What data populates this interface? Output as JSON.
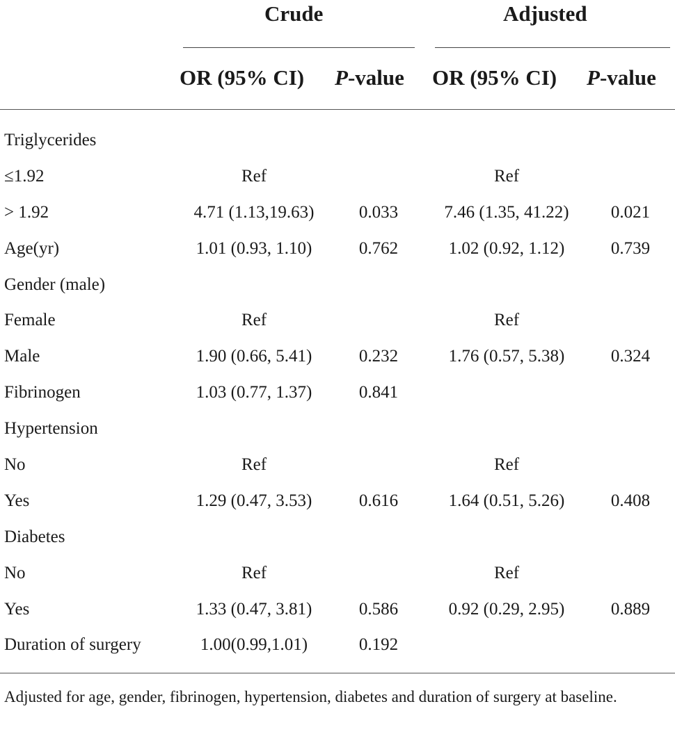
{
  "groups": {
    "crude": "Crude",
    "adjusted": "Adjusted"
  },
  "columns": {
    "or": "OR (95% CI)",
    "p_prefix": "P",
    "p_suffix": "-value"
  },
  "rows": [
    {
      "label": "Triglycerides",
      "crude_or": "",
      "crude_p": "",
      "adj_or": "",
      "adj_p": ""
    },
    {
      "label": "≤1.92",
      "crude_or": "Ref",
      "crude_p": "",
      "adj_or": "Ref",
      "adj_p": ""
    },
    {
      "label": "> 1.92",
      "crude_or": "4.71 (1.13,19.63)",
      "crude_p": "0.033",
      "adj_or": "7.46 (1.35, 41.22)",
      "adj_p": "0.021"
    },
    {
      "label": "Age(yr)",
      "crude_or": "1.01 (0.93, 1.10)",
      "crude_p": "0.762",
      "adj_or": "1.02 (0.92, 1.12)",
      "adj_p": "0.739"
    },
    {
      "label": "Gender (male)",
      "crude_or": "",
      "crude_p": "",
      "adj_or": "",
      "adj_p": ""
    },
    {
      "label": "Female",
      "crude_or": "Ref",
      "crude_p": "",
      "adj_or": "Ref",
      "adj_p": ""
    },
    {
      "label": "Male",
      "crude_or": "1.90 (0.66, 5.41)",
      "crude_p": "0.232",
      "adj_or": "1.76 (0.57, 5.38)",
      "adj_p": "0.324"
    },
    {
      "label": "Fibrinogen",
      "crude_or": "1.03 (0.77, 1.37)",
      "crude_p": "0.841",
      "adj_or": "",
      "adj_p": ""
    },
    {
      "label": "Hypertension",
      "crude_or": "",
      "crude_p": "",
      "adj_or": "",
      "adj_p": ""
    },
    {
      "label": "No",
      "crude_or": "Ref",
      "crude_p": "",
      "adj_or": "Ref",
      "adj_p": ""
    },
    {
      "label": "Yes",
      "crude_or": "1.29 (0.47, 3.53)",
      "crude_p": "0.616",
      "adj_or": "1.64 (0.51, 5.26)",
      "adj_p": "0.408"
    },
    {
      "label": "Diabetes",
      "crude_or": "",
      "crude_p": "",
      "adj_or": "",
      "adj_p": ""
    },
    {
      "label": "No",
      "crude_or": "Ref",
      "crude_p": "",
      "adj_or": "Ref",
      "adj_p": ""
    },
    {
      "label": "Yes",
      "crude_or": "1.33 (0.47, 3.81)",
      "crude_p": "0.586",
      "adj_or": "0.92 (0.29, 2.95)",
      "adj_p": "0.889"
    },
    {
      "label": "Duration of surgery",
      "crude_or": "1.00(0.99,1.01)",
      "crude_p": "0.192",
      "adj_or": "",
      "adj_p": ""
    }
  ],
  "footnote": "Adjusted for age, gender, fibrinogen, hypertension, diabetes and duration of surgery at baseline."
}
